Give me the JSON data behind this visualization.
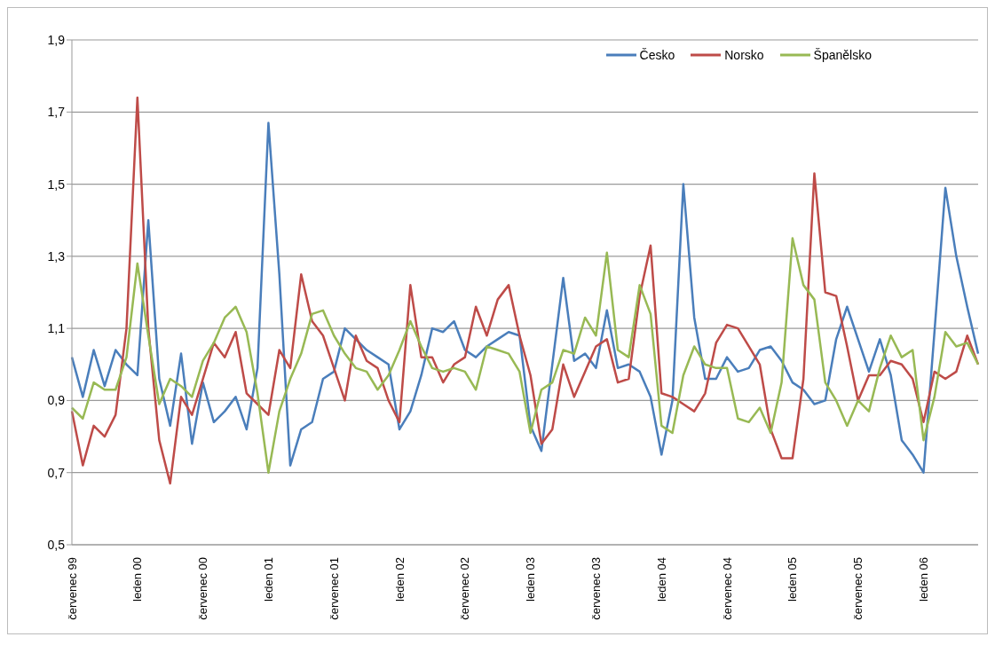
{
  "chart_data": {
    "type": "line",
    "categories": [
      "červenec 99",
      null,
      null,
      null,
      null,
      null,
      "leden 00",
      null,
      null,
      null,
      null,
      null,
      "červenec 00",
      null,
      null,
      null,
      null,
      null,
      "leden 01",
      null,
      null,
      null,
      null,
      null,
      "červenec 01",
      null,
      null,
      null,
      null,
      null,
      "leden 02",
      null,
      null,
      null,
      null,
      null,
      "červenec 02",
      null,
      null,
      null,
      null,
      null,
      "leden 03",
      null,
      null,
      null,
      null,
      null,
      "červenec 03",
      null,
      null,
      null,
      null,
      null,
      "leden 04",
      null,
      null,
      null,
      null,
      null,
      "červenec 04",
      null,
      null,
      null,
      null,
      null,
      "leden 05",
      null,
      null,
      null,
      null,
      null,
      "červenec 05",
      null,
      null,
      null,
      null,
      null,
      "leden 06",
      null,
      null,
      null,
      null,
      null
    ],
    "series": [
      {
        "name": "Česko",
        "color": "#4a7ebb",
        "values": [
          1.02,
          0.91,
          1.04,
          0.94,
          1.04,
          1.0,
          0.97,
          1.4,
          0.96,
          0.83,
          1.03,
          0.78,
          0.95,
          0.84,
          0.87,
          0.91,
          0.82,
          0.99,
          1.67,
          1.25,
          0.72,
          0.82,
          0.84,
          0.96,
          0.98,
          1.1,
          1.07,
          1.04,
          1.02,
          1.0,
          0.82,
          0.87,
          0.97,
          1.1,
          1.09,
          1.12,
          1.04,
          1.02,
          1.05,
          1.07,
          1.09,
          1.08,
          0.83,
          0.76,
          1.0,
          1.24,
          1.01,
          1.03,
          0.99,
          1.15,
          0.99,
          1.0,
          0.98,
          0.91,
          0.75,
          0.9,
          1.5,
          1.13,
          0.96,
          0.96,
          1.02,
          0.98,
          0.99,
          1.04,
          1.05,
          1.01,
          0.95,
          0.93,
          0.89,
          0.9,
          1.07,
          1.16,
          1.07,
          0.98,
          1.07,
          0.97,
          0.79,
          0.75,
          0.7,
          1.09,
          1.49,
          1.3,
          1.16,
          1.03
        ]
      },
      {
        "name": "Norsko",
        "color": "#be4b48",
        "values": [
          0.87,
          0.72,
          0.83,
          0.8,
          0.86,
          1.1,
          1.74,
          1.1,
          0.79,
          0.67,
          0.91,
          0.86,
          0.96,
          1.06,
          1.02,
          1.09,
          0.92,
          0.89,
          0.86,
          1.04,
          0.99,
          1.25,
          1.12,
          1.08,
          0.99,
          0.9,
          1.08,
          1.01,
          0.99,
          0.9,
          0.84,
          1.22,
          1.02,
          1.02,
          0.95,
          1.0,
          1.02,
          1.16,
          1.08,
          1.18,
          1.22,
          1.08,
          0.97,
          0.78,
          0.82,
          1.0,
          0.91,
          0.98,
          1.05,
          1.07,
          0.95,
          0.96,
          1.19,
          1.33,
          0.92,
          0.91,
          0.89,
          0.87,
          0.92,
          1.06,
          1.11,
          1.1,
          1.05,
          1.0,
          0.82,
          0.74,
          0.74,
          0.96,
          1.53,
          1.2,
          1.19,
          1.05,
          0.9,
          0.97,
          0.97,
          1.01,
          1.0,
          0.96,
          0.84,
          0.98,
          0.96,
          0.98,
          1.08,
          1.0
        ]
      },
      {
        "name": "Španělsko",
        "color": "#98b954",
        "values": [
          0.88,
          0.85,
          0.95,
          0.93,
          0.93,
          1.02,
          1.28,
          1.08,
          0.89,
          0.96,
          0.94,
          0.91,
          1.01,
          1.06,
          1.13,
          1.16,
          1.09,
          0.92,
          0.7,
          0.87,
          0.96,
          1.03,
          1.14,
          1.15,
          1.08,
          1.03,
          0.99,
          0.98,
          0.93,
          0.97,
          1.04,
          1.12,
          1.05,
          0.99,
          0.98,
          0.99,
          0.98,
          0.93,
          1.05,
          1.04,
          1.03,
          0.98,
          0.81,
          0.93,
          0.95,
          1.04,
          1.03,
          1.13,
          1.08,
          1.31,
          1.04,
          1.02,
          1.22,
          1.14,
          0.83,
          0.81,
          0.97,
          1.05,
          1.0,
          0.99,
          0.99,
          0.85,
          0.84,
          0.88,
          0.81,
          0.95,
          1.35,
          1.22,
          1.18,
          0.95,
          0.9,
          0.83,
          0.9,
          0.87,
          0.99,
          1.08,
          1.02,
          1.04,
          0.79,
          0.91,
          1.09,
          1.05,
          1.06,
          1.0
        ]
      }
    ],
    "ylim": [
      0.5,
      1.9
    ],
    "yticks": [
      {
        "value": 0.5,
        "label": "0,5"
      },
      {
        "value": 0.7,
        "label": "0,7"
      },
      {
        "value": 0.9,
        "label": "0,9"
      },
      {
        "value": 1.1,
        "label": "1,1"
      },
      {
        "value": 1.3,
        "label": "1,3"
      },
      {
        "value": 1.5,
        "label": "1,5"
      },
      {
        "value": 1.7,
        "label": "1,7"
      },
      {
        "value": 1.9,
        "label": "1,9"
      }
    ],
    "grid": "y",
    "legend": "top right"
  }
}
